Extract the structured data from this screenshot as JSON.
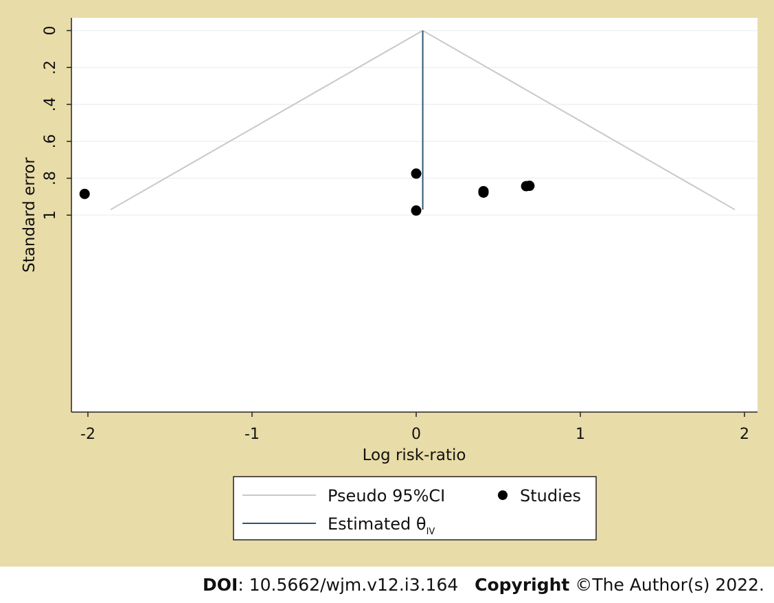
{
  "chart_data": {
    "type": "scatter",
    "xlabel": "Log risk-ratio",
    "ylabel": "Standard error",
    "xlim": [
      -2.1,
      2.1
    ],
    "ylim": [
      0,
      1.03
    ],
    "y_reversed": true,
    "x_ticks": [
      -2,
      -1,
      0,
      1,
      2
    ],
    "x_tick_labels": [
      "-2",
      "-1",
      "0",
      "1",
      "2"
    ],
    "y_ticks": [
      0,
      0.2,
      0.4,
      0.6,
      0.8,
      1
    ],
    "y_tick_labels": [
      "0",
      ".2",
      ".4",
      ".6",
      ".8",
      "1"
    ],
    "grid": true,
    "estimate": 0.04,
    "funnel_max_se": 0.97,
    "studies": [
      {
        "x": -2.02,
        "y": 0.885
      },
      {
        "x": 0.0,
        "y": 0.775
      },
      {
        "x": 0.0,
        "y": 0.975
      },
      {
        "x": 0.41,
        "y": 0.87
      },
      {
        "x": 0.41,
        "y": 0.878
      },
      {
        "x": 0.67,
        "y": 0.843
      },
      {
        "x": 0.69,
        "y": 0.841
      }
    ],
    "legend": {
      "position": "bottom",
      "items": [
        {
          "label": "Pseudo 95%CI",
          "kind": "line",
          "color": "#c8c8c8"
        },
        {
          "label": "Studies",
          "kind": "marker",
          "color": "#000000"
        },
        {
          "label": "Estimated θ",
          "subscript": "IV",
          "kind": "line",
          "color": "#2e5470"
        }
      ]
    },
    "colors": {
      "background": "#e8dca8",
      "plot": "#ffffff",
      "funnel": "#c8c8c8",
      "estimate": "#2e5470",
      "marker": "#000000",
      "grid": "#eef1f4"
    }
  },
  "footer": {
    "doi_label": "DOI",
    "doi_value": ": 10.5662/wjm.v12.i3.164",
    "copyright_label": "Copyright",
    "copyright_value": " ©The Author(s) 2022."
  }
}
